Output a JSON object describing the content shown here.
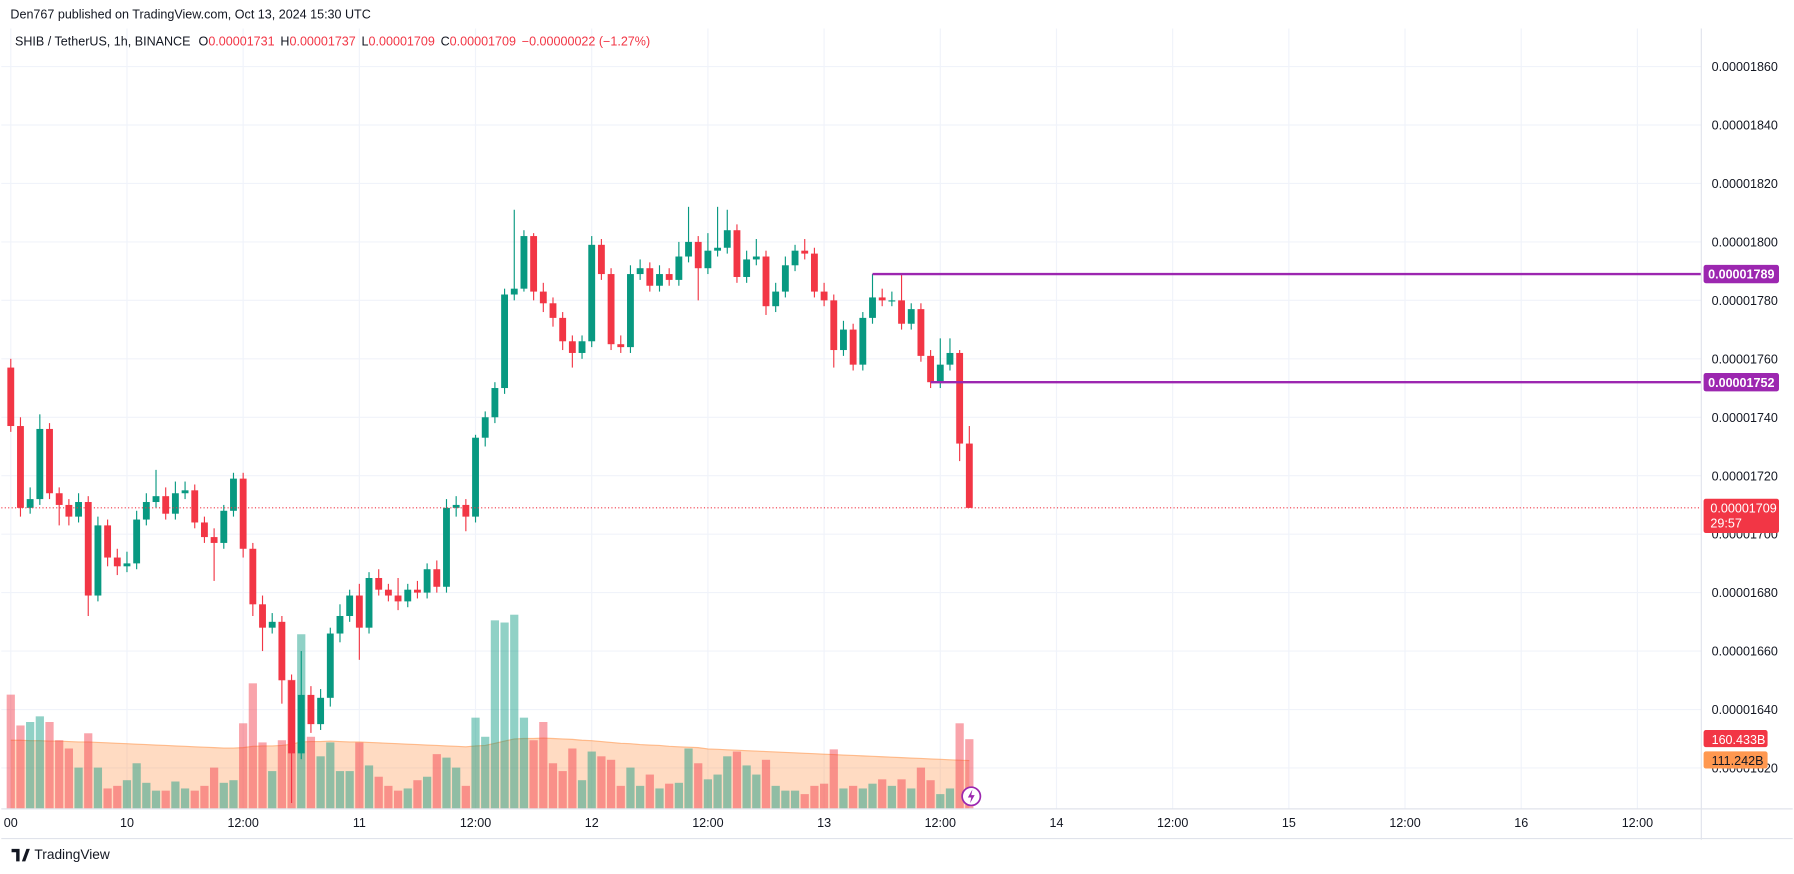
{
  "header": {
    "published": "Den767 published on TradingView.com, Oct 13, 2024 15:30 UTC"
  },
  "footer": {
    "brand": "TradingView"
  },
  "chart_data": {
    "type": "candlestick",
    "legend": {
      "symbol": "SHIB / TetherUS, 1h, BINANCE",
      "o_label": "O",
      "o": "0.00001731",
      "h_label": "H",
      "h": "0.00001737",
      "l_label": "L",
      "l": "0.00001709",
      "c_label": "C",
      "c": "0.00001709",
      "change": "−0.00000022 (−1.27%)"
    },
    "up_color": "#089981",
    "down_color": "#f23645",
    "level_color": "#9c27b0",
    "ma_color": "#ff9850",
    "open": [
      1.757e-05,
      1.737e-05,
      1.709e-05,
      1.712e-05,
      1.736e-05,
      1.714e-05,
      1.71e-05,
      1.706e-05,
      1.711e-05,
      1.679e-05,
      1.703e-05,
      1.692e-05,
      1.689e-05,
      1.69e-05,
      1.705e-05,
      1.711e-05,
      1.713e-05,
      1.707e-05,
      1.714e-05,
      1.715e-05,
      1.704e-05,
      1.699e-05,
      1.697e-05,
      1.708e-05,
      1.719e-05,
      1.695e-05,
      1.676e-05,
      1.668e-05,
      1.67e-05,
      1.65e-05,
      1.625e-05,
      1.645e-05,
      1.635e-05,
      1.644e-05,
      1.666e-05,
      1.672e-05,
      1.679e-05,
      1.668e-05,
      1.685e-05,
      1.681e-05,
      1.679e-05,
      1.677e-05,
      1.681e-05,
      1.68e-05,
      1.688e-05,
      1.682e-05,
      1.709e-05,
      1.71e-05,
      1.706e-05,
      1.733e-05,
      1.74e-05,
      1.75e-05,
      1.782e-05,
      1.784e-05,
      1.802e-05,
      1.783e-05,
      1.779e-05,
      1.774e-05,
      1.766e-05,
      1.762e-05,
      1.766e-05,
      1.799e-05,
      1.789e-05,
      1.765e-05,
      1.764e-05,
      1.789e-05,
      1.791e-05,
      1.785e-05,
      1.789e-05,
      1.787e-05,
      1.795e-05,
      1.8e-05,
      1.791e-05,
      1.797e-05,
      1.798e-05,
      1.804e-05,
      1.788e-05,
      1.794e-05,
      1.795e-05,
      1.778e-05,
      1.783e-05,
      1.792e-05,
      1.797e-05,
      1.796e-05,
      1.783e-05,
      1.78e-05,
      1.763e-05,
      1.77e-05,
      1.758e-05,
      1.774e-05,
      1.781e-05,
      1.78e-05,
      1.78e-05,
      1.772e-05,
      1.777e-05,
      1.761e-05,
      1.752e-05,
      1.758e-05,
      1.762e-05,
      1.731e-05
    ],
    "high": [
      1.76e-05,
      1.74e-05,
      1.716e-05,
      1.741e-05,
      1.738e-05,
      1.716e-05,
      1.712e-05,
      1.714e-05,
      1.713e-05,
      1.706e-05,
      1.705e-05,
      1.695e-05,
      1.694e-05,
      1.708e-05,
      1.714e-05,
      1.722e-05,
      1.716e-05,
      1.718e-05,
      1.718e-05,
      1.717e-05,
      1.706e-05,
      1.702e-05,
      1.71e-05,
      1.721e-05,
      1.721e-05,
      1.697e-05,
      1.679e-05,
      1.673e-05,
      1.672e-05,
      1.652e-05,
      1.66e-05,
      1.648e-05,
      1.647e-05,
      1.668e-05,
      1.676e-05,
      1.681e-05,
      1.683e-05,
      1.687e-05,
      1.688e-05,
      1.683e-05,
      1.685e-05,
      1.683e-05,
      1.684e-05,
      1.69e-05,
      1.691e-05,
      1.712e-05,
      1.713e-05,
      1.712e-05,
      1.734e-05,
      1.742e-05,
      1.752e-05,
      1.784e-05,
      1.811e-05,
      1.804e-05,
      1.803e-05,
      1.786e-05,
      1.781e-05,
      1.776e-05,
      1.768e-05,
      1.768e-05,
      1.802e-05,
      1.801e-05,
      1.791e-05,
      1.768e-05,
      1.792e-05,
      1.794e-05,
      1.793e-05,
      1.792e-05,
      1.791e-05,
      1.8e-05,
      1.812e-05,
      1.802e-05,
      1.803e-05,
      1.812e-05,
      1.811e-05,
      1.806e-05,
      1.797e-05,
      1.801e-05,
      1.797e-05,
      1.786e-05,
      1.795e-05,
      1.799e-05,
      1.801e-05,
      1.798e-05,
      1.786e-05,
      1.782e-05,
      1.773e-05,
      1.772e-05,
      1.776e-05,
      1.789e-05,
      1.784e-05,
      1.783e-05,
      1.789e-05,
      1.779e-05,
      1.779e-05,
      1.763e-05,
      1.767e-05,
      1.767e-05,
      1.763e-05,
      1.737e-05
    ],
    "low": [
      1.735e-05,
      1.706e-05,
      1.707e-05,
      1.71e-05,
      1.712e-05,
      1.703e-05,
      1.703e-05,
      1.704e-05,
      1.672e-05,
      1.677e-05,
      1.689e-05,
      1.686e-05,
      1.687e-05,
      1.688e-05,
      1.703e-05,
      1.709e-05,
      1.705e-05,
      1.705e-05,
      1.712e-05,
      1.702e-05,
      1.697e-05,
      1.684e-05,
      1.695e-05,
      1.706e-05,
      1.692e-05,
      1.672e-05,
      1.66e-05,
      1.666e-05,
      1.642e-05,
      1.608e-05,
      1.623e-05,
      1.632e-05,
      1.633e-05,
      1.641e-05,
      1.663e-05,
      1.67e-05,
      1.657e-05,
      1.666e-05,
      1.679e-05,
      1.677e-05,
      1.674e-05,
      1.675e-05,
      1.678e-05,
      1.678e-05,
      1.68e-05,
      1.68e-05,
      1.706e-05,
      1.701e-05,
      1.704e-05,
      1.73e-05,
      1.738e-05,
      1.748e-05,
      1.78e-05,
      1.783e-05,
      1.78e-05,
      1.776e-05,
      1.771e-05,
      1.763e-05,
      1.757e-05,
      1.76e-05,
      1.764e-05,
      1.787e-05,
      1.763e-05,
      1.762e-05,
      1.762e-05,
      1.787e-05,
      1.783e-05,
      1.783e-05,
      1.785e-05,
      1.785e-05,
      1.793e-05,
      1.78e-05,
      1.789e-05,
      1.795e-05,
      1.796e-05,
      1.786e-05,
      1.786e-05,
      1.792e-05,
      1.775e-05,
      1.776e-05,
      1.781e-05,
      1.79e-05,
      1.794e-05,
      1.781e-05,
      1.778e-05,
      1.757e-05,
      1.761e-05,
      1.756e-05,
      1.756e-05,
      1.772e-05,
      1.778e-05,
      1.778e-05,
      1.77e-05,
      1.77e-05,
      1.759e-05,
      1.75e-05,
      1.75e-05,
      1.756e-05,
      1.725e-05,
      1.709e-05
    ],
    "close": [
      1.737e-05,
      1.709e-05,
      1.712e-05,
      1.736e-05,
      1.714e-05,
      1.71e-05,
      1.706e-05,
      1.711e-05,
      1.679e-05,
      1.703e-05,
      1.692e-05,
      1.689e-05,
      1.69e-05,
      1.705e-05,
      1.711e-05,
      1.713e-05,
      1.707e-05,
      1.714e-05,
      1.715e-05,
      1.704e-05,
      1.699e-05,
      1.697e-05,
      1.708e-05,
      1.719e-05,
      1.695e-05,
      1.676e-05,
      1.668e-05,
      1.67e-05,
      1.65e-05,
      1.625e-05,
      1.645e-05,
      1.635e-05,
      1.644e-05,
      1.666e-05,
      1.672e-05,
      1.679e-05,
      1.668e-05,
      1.685e-05,
      1.681e-05,
      1.679e-05,
      1.677e-05,
      1.681e-05,
      1.68e-05,
      1.688e-05,
      1.682e-05,
      1.709e-05,
      1.71e-05,
      1.706e-05,
      1.733e-05,
      1.74e-05,
      1.75e-05,
      1.782e-05,
      1.784e-05,
      1.802e-05,
      1.783e-05,
      1.779e-05,
      1.774e-05,
      1.766e-05,
      1.762e-05,
      1.766e-05,
      1.799e-05,
      1.789e-05,
      1.765e-05,
      1.764e-05,
      1.789e-05,
      1.791e-05,
      1.785e-05,
      1.789e-05,
      1.787e-05,
      1.795e-05,
      1.8e-05,
      1.791e-05,
      1.797e-05,
      1.798e-05,
      1.804e-05,
      1.788e-05,
      1.794e-05,
      1.795e-05,
      1.778e-05,
      1.783e-05,
      1.792e-05,
      1.797e-05,
      1.796e-05,
      1.783e-05,
      1.78e-05,
      1.763e-05,
      1.77e-05,
      1.758e-05,
      1.774e-05,
      1.781e-05,
      1.78e-05,
      1.78e-05,
      1.772e-05,
      1.777e-05,
      1.761e-05,
      1.752e-05,
      1.758e-05,
      1.762e-05,
      1.731e-05,
      1.709e-05
    ],
    "volume": [
      263,
      192,
      200,
      213,
      200,
      158,
      139,
      95,
      174,
      95,
      47,
      53,
      66,
      105,
      60,
      42,
      42,
      63,
      47,
      42,
      53,
      95,
      60,
      66,
      197,
      289,
      153,
      87,
      158,
      297,
      402,
      166,
      121,
      153,
      87,
      87,
      153,
      100,
      74,
      53,
      42,
      47,
      66,
      74,
      126,
      118,
      95,
      53,
      210,
      166,
      434,
      429,
      447,
      210,
      158,
      200,
      105,
      87,
      139,
      66,
      132,
      121,
      113,
      53,
      95,
      53,
      79,
      47,
      58,
      60,
      139,
      105,
      68,
      79,
      121,
      132,
      100,
      79,
      113,
      53,
      42,
      42,
      34,
      53,
      58,
      137,
      47,
      53,
      47,
      58,
      68,
      53,
      68,
      47,
      95,
      66,
      34,
      47,
      197,
      160.433
    ],
    "volume_ma": [
      158,
      158,
      157,
      157,
      156,
      156,
      155,
      154,
      154,
      153,
      152,
      151,
      150,
      149,
      148,
      147,
      146,
      145,
      144,
      143,
      142,
      141,
      140,
      140,
      141,
      144,
      145,
      145,
      146,
      149,
      154,
      155,
      155,
      156,
      155,
      154,
      154,
      153,
      152,
      151,
      150,
      149,
      148,
      147,
      146,
      145,
      144,
      143,
      145,
      146,
      151,
      156,
      161,
      162,
      162,
      163,
      162,
      161,
      160,
      158,
      157,
      155,
      153,
      151,
      150,
      148,
      147,
      146,
      144,
      143,
      142,
      141,
      138,
      137,
      136,
      135,
      134,
      133,
      132,
      131,
      130,
      129,
      128,
      127,
      126,
      125,
      124,
      123,
      122,
      121,
      120,
      119,
      118,
      117,
      116,
      115,
      114,
      113,
      112,
      111.242
    ],
    "volume_label": "160.433B",
    "volume_ma_label": "111.242B",
    "current_price": {
      "value": 1.709e-05,
      "label": "0.00001709",
      "countdown": "29:57"
    },
    "levels": [
      {
        "value": 1.789e-05,
        "label": "0.00001789",
        "x_start": 89
      },
      {
        "value": 1.752e-05,
        "label": "0.00001752",
        "x_start": 95
      }
    ],
    "ylim": [
      1.606e-05,
      1.873e-05
    ],
    "yticks": [
      {
        "value": 1.62e-05,
        "label": "0.00001620"
      },
      {
        "value": 1.64e-05,
        "label": "0.00001640"
      },
      {
        "value": 1.66e-05,
        "label": "0.00001660"
      },
      {
        "value": 1.68e-05,
        "label": "0.00001680"
      },
      {
        "value": 1.7e-05,
        "label": "0.00001700"
      },
      {
        "value": 1.72e-05,
        "label": "0.00001720"
      },
      {
        "value": 1.74e-05,
        "label": "0.00001740"
      },
      {
        "value": 1.76e-05,
        "label": "0.00001760"
      },
      {
        "value": 1.78e-05,
        "label": "0.00001780"
      },
      {
        "value": 1.8e-05,
        "label": "0.00001800"
      },
      {
        "value": 1.82e-05,
        "label": "0.00001820"
      },
      {
        "value": 1.84e-05,
        "label": "0.00001840"
      },
      {
        "value": 1.86e-05,
        "label": "0.00001860"
      }
    ],
    "xlim": [
      -0.98,
      174.6
    ],
    "xticks": [
      {
        "value": 0,
        "label": "00"
      },
      {
        "value": 12,
        "label": "10"
      },
      {
        "value": 24,
        "label": "12:00"
      },
      {
        "value": 36,
        "label": "11"
      },
      {
        "value": 48,
        "label": "12:00"
      },
      {
        "value": 60,
        "label": "12"
      },
      {
        "value": 72,
        "label": "12:00"
      },
      {
        "value": 84,
        "label": "13"
      },
      {
        "value": 96,
        "label": "12:00"
      },
      {
        "value": 108,
        "label": "14"
      },
      {
        "value": 120,
        "label": "12:00"
      },
      {
        "value": 132,
        "label": "15"
      },
      {
        "value": 144,
        "label": "12:00"
      },
      {
        "value": 156,
        "label": "16"
      },
      {
        "value": 168,
        "label": "12:00"
      }
    ],
    "grid": true
  }
}
